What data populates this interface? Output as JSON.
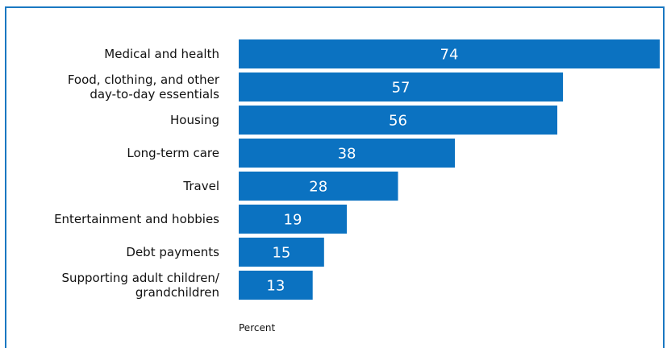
{
  "chart_data": {
    "type": "bar",
    "orientation": "horizontal",
    "categories": [
      [
        "Medical and health"
      ],
      [
        "Food, clothing, and other",
        "day-to-day essentials"
      ],
      [
        "Housing"
      ],
      [
        "Long-term care"
      ],
      [
        "Travel"
      ],
      [
        "Entertainment and hobbies"
      ],
      [
        "Debt payments"
      ],
      [
        "Supporting adult children/",
        "grandchildren"
      ]
    ],
    "values": [
      74,
      57,
      56,
      38,
      28,
      19,
      15,
      13
    ],
    "xlabel": "Percent",
    "xlim": [
      0,
      74
    ],
    "bar_color": "#0b72c1",
    "frame_color": "#1a78c2",
    "grid": false,
    "legend": "none"
  }
}
